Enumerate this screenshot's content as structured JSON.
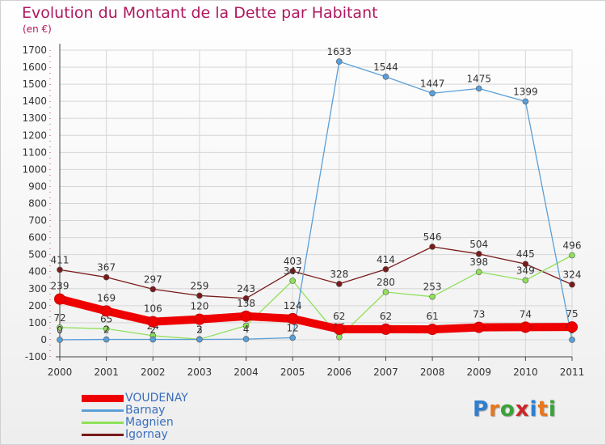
{
  "header": {
    "title": "Evolution du Montant de la Dette par Habitant",
    "subtitle": "(en €)"
  },
  "logo": {
    "text": "Proxiti",
    "letter_colors": [
      "#2e7fd0",
      "#e8761b",
      "#3aa23a",
      "#cc2727",
      "#2e7fd0",
      "#e8761b",
      "#3aa23a"
    ]
  },
  "colors": {
    "axis_text": "#333333",
    "title": "#b0185f",
    "grid": "#d6d6d6"
  },
  "chart_data": {
    "type": "line",
    "title": "Evolution du Montant de la Dette par Habitant",
    "subtitle": "(en €)",
    "xlabel": "",
    "ylabel": "",
    "categories": [
      "2000",
      "2001",
      "2002",
      "2003",
      "2004",
      "2005",
      "2006",
      "2007",
      "2008",
      "2009",
      "2010",
      "2011"
    ],
    "ylim": [
      -100,
      1700
    ],
    "yticks": [
      -100,
      0,
      100,
      200,
      300,
      400,
      500,
      600,
      700,
      800,
      900,
      1000,
      1100,
      1200,
      1300,
      1400,
      1500,
      1600,
      1700
    ],
    "grid": true,
    "legend_position": "bottom-left",
    "series": [
      {
        "name": "Igornay",
        "color": "#7a1a1a",
        "values": [
          411,
          367,
          297,
          259,
          243,
          403,
          328,
          414,
          546,
          504,
          445,
          324
        ],
        "labels": [
          "411",
          "367",
          "297",
          "259",
          "243",
          "403",
          "328",
          "414",
          "546",
          "504",
          "445",
          "324"
        ]
      },
      {
        "name": "Magnien",
        "color": "#8fe05a",
        "values": [
          72,
          65,
          24,
          3,
          83,
          347,
          16,
          280,
          253,
          398,
          349,
          496
        ],
        "labels": [
          "72",
          "65",
          "24",
          "3",
          "83",
          "347",
          "16",
          "280",
          "253",
          "398",
          "349",
          "496"
        ]
      },
      {
        "name": "Barnay",
        "color": "#5a9fd8",
        "values": [
          0,
          2,
          2,
          2,
          4,
          12,
          1633,
          1544,
          1447,
          1475,
          1399,
          0
        ],
        "labels": [
          "0",
          "2",
          "2",
          "2",
          "4",
          "12",
          "1633",
          "1544",
          "1447",
          "1475",
          "1399",
          "0"
        ]
      },
      {
        "name": "VOUDENAY",
        "color": "#ee0000",
        "values": [
          239,
          169,
          106,
          120,
          138,
          124,
          62,
          62,
          61,
          73,
          74,
          75
        ],
        "labels": [
          "239",
          "169",
          "106",
          "120",
          "138",
          "124",
          "62",
          "62",
          "61",
          "73",
          "74",
          "75"
        ]
      }
    ],
    "legend_order": [
      "VOUDENAY",
      "Barnay",
      "Magnien",
      "Igornay"
    ]
  }
}
